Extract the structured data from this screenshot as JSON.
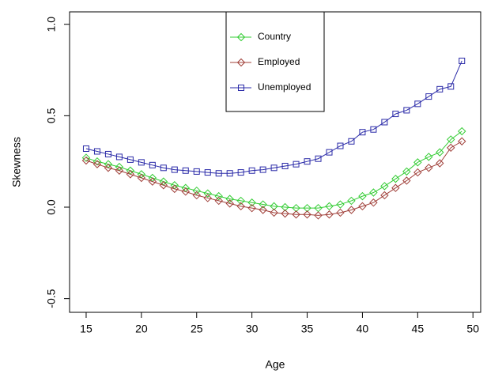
{
  "chart_data": {
    "type": "line",
    "x_label": "Age",
    "y_label": "Skewness",
    "x": [
      15,
      16,
      17,
      18,
      19,
      20,
      21,
      22,
      23,
      24,
      25,
      26,
      27,
      28,
      29,
      30,
      31,
      32,
      33,
      34,
      35,
      36,
      37,
      38,
      39,
      40,
      41,
      42,
      43,
      44,
      45,
      46,
      47,
      48,
      49
    ],
    "series": [
      {
        "name": "Country",
        "color": "#33cc33",
        "marker": "diamond",
        "values": [
          0.27,
          0.25,
          0.235,
          0.22,
          0.2,
          0.18,
          0.16,
          0.14,
          0.12,
          0.105,
          0.09,
          0.075,
          0.06,
          0.045,
          0.035,
          0.025,
          0.015,
          0.005,
          0.0,
          -0.005,
          -0.005,
          -0.005,
          0.005,
          0.015,
          0.035,
          0.06,
          0.08,
          0.115,
          0.155,
          0.195,
          0.245,
          0.275,
          0.3,
          0.37,
          0.415
        ]
      },
      {
        "name": "Employed",
        "color": "#a0403a",
        "marker": "diamond",
        "values": [
          0.255,
          0.235,
          0.215,
          0.2,
          0.18,
          0.16,
          0.14,
          0.12,
          0.1,
          0.085,
          0.065,
          0.05,
          0.035,
          0.02,
          0.005,
          -0.005,
          -0.015,
          -0.03,
          -0.035,
          -0.04,
          -0.04,
          -0.045,
          -0.04,
          -0.03,
          -0.015,
          0.005,
          0.025,
          0.065,
          0.105,
          0.145,
          0.19,
          0.215,
          0.24,
          0.325,
          0.36
        ]
      },
      {
        "name": "Unemployed",
        "color": "#2a2aa8",
        "marker": "square",
        "values": [
          0.32,
          0.305,
          0.29,
          0.275,
          0.26,
          0.245,
          0.23,
          0.215,
          0.205,
          0.2,
          0.195,
          0.19,
          0.185,
          0.185,
          0.19,
          0.2,
          0.205,
          0.215,
          0.225,
          0.235,
          0.25,
          0.265,
          0.3,
          0.335,
          0.36,
          0.41,
          0.425,
          0.465,
          0.51,
          0.53,
          0.565,
          0.605,
          0.645,
          0.66,
          0.8
        ]
      }
    ],
    "xlim": [
      13.5,
      50.7
    ],
    "xticks": [
      15,
      20,
      25,
      30,
      35,
      40,
      45,
      50
    ],
    "ylim": [
      -0.575,
      1.068
    ],
    "yticks": [
      {
        "value": -0.5,
        "label": "-0.5"
      },
      {
        "value": 0,
        "label": "0.0"
      },
      {
        "value": 0.5,
        "label": "0.5"
      },
      {
        "value": 1,
        "label": "1.0"
      }
    ],
    "grid": false,
    "legend": "top"
  }
}
